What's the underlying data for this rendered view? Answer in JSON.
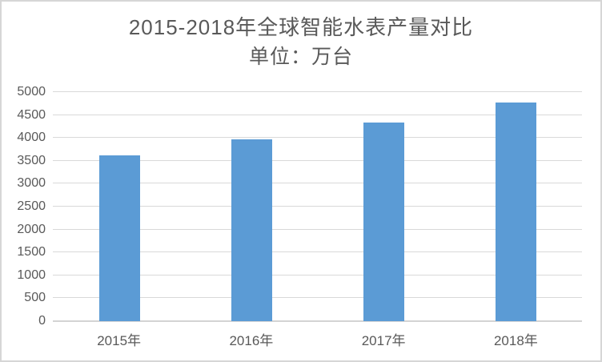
{
  "chart_data": {
    "type": "bar",
    "title": "2015-2018年全球智能水表产量对比",
    "subtitle": "单位：万台",
    "categories": [
      "2015年",
      "2016年",
      "2017年",
      "2018年"
    ],
    "values": [
      3620,
      3970,
      4340,
      4765
    ],
    "xlabel": "",
    "ylabel": "",
    "ylim": [
      0,
      5000
    ],
    "yticks": [
      0,
      500,
      1000,
      1500,
      2000,
      2500,
      3000,
      3500,
      4000,
      4500,
      5000
    ],
    "legend_position": "none",
    "grid": "horizontal",
    "bar_color": "#5B9BD5",
    "gridline_color": "#D9D9D9",
    "axis_line_color": "#D4D4D4",
    "text_color": "#595959",
    "frame_border_color": "#D6D6D6"
  }
}
